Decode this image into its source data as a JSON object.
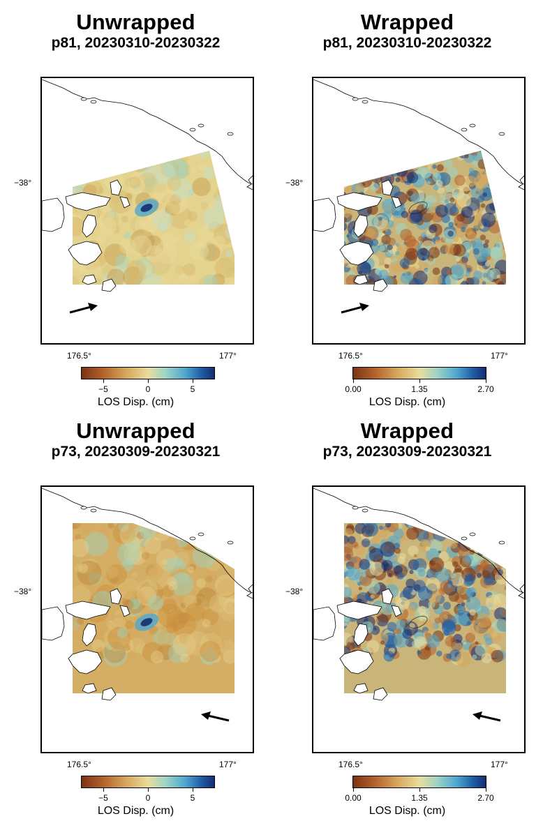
{
  "panels": [
    {
      "id": "p81-unwrapped",
      "title": "Unwrapped",
      "subtitle": "p81, 20230310-20230322",
      "lat_tick": "−38°",
      "lon_ticks": [
        "176.5°",
        "177°"
      ],
      "colorbar_ticks": [
        "−5",
        "0",
        "5"
      ],
      "colorbar_label": "LOS Disp. (cm)",
      "mode": "unwrapped",
      "heading": "east-northeast",
      "colors": {
        "low": "#7a3312",
        "mid": "#eadc9c",
        "high": "#142d72"
      }
    },
    {
      "id": "p81-wrapped",
      "title": "Wrapped",
      "subtitle": "p81, 20230310-20230322",
      "lat_tick": "−38°",
      "lon_ticks": [
        "176.5°",
        "177°"
      ],
      "colorbar_ticks": [
        "0.00",
        "1.35",
        "2.70"
      ],
      "colorbar_label": "LOS Disp. (cm)",
      "mode": "wrapped",
      "heading": "east-northeast",
      "colors": {
        "low": "#7a3312",
        "mid": "#eadc9c",
        "high": "#142d72"
      }
    },
    {
      "id": "p73-unwrapped",
      "title": "Unwrapped",
      "subtitle": "p73, 20230309-20230321",
      "lat_tick": "−38°",
      "lon_ticks": [
        "176.5°",
        "177°"
      ],
      "colorbar_ticks": [
        "−5",
        "0",
        "5"
      ],
      "colorbar_label": "LOS Disp. (cm)",
      "mode": "unwrapped",
      "heading": "west-northwest",
      "colors": {
        "low": "#7a3312",
        "mid": "#eadc9c",
        "high": "#142d72"
      }
    },
    {
      "id": "p73-wrapped",
      "title": "Wrapped",
      "subtitle": "p73, 20230309-20230321",
      "lat_tick": "−38°",
      "lon_ticks": [
        "176.5°",
        "177°"
      ],
      "colorbar_ticks": [
        "0.00",
        "1.35",
        "2.70"
      ],
      "colorbar_label": "LOS Disp. (cm)",
      "mode": "wrapped",
      "heading": "west-northwest",
      "colors": {
        "low": "#7a3312",
        "mid": "#eadc9c",
        "high": "#142d72"
      }
    }
  ]
}
